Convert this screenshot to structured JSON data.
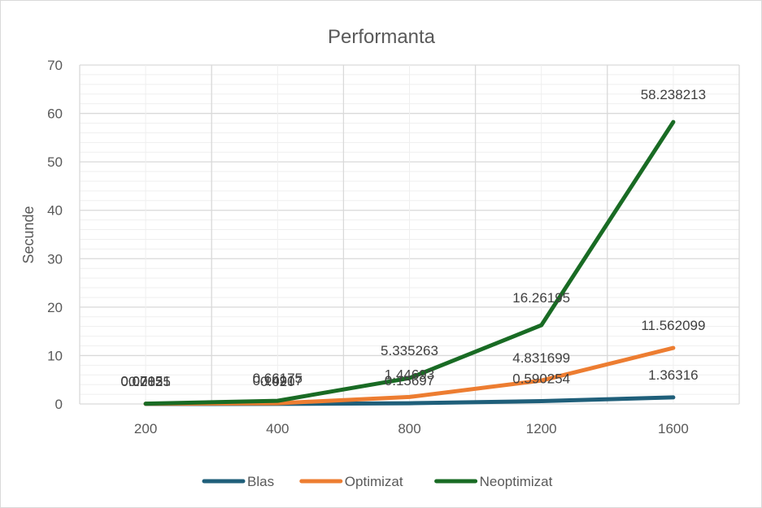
{
  "chart_data": {
    "type": "line",
    "title": "Performanta",
    "xlabel": "",
    "ylabel": "Secunde",
    "categories": [
      "200",
      "400",
      "800",
      "1200",
      "1600"
    ],
    "ylim": [
      0,
      70
    ],
    "yticks": [
      "0",
      "10",
      "20",
      "30",
      "40",
      "50",
      "60",
      "70"
    ],
    "grid": true,
    "legend_position": "bottom",
    "series": [
      {
        "name": "Blas",
        "color": "#1f5f7a",
        "values": [
          0.002,
          0.02,
          0.15697,
          0.590254,
          1.36316
        ],
        "labels": [
          "0.002",
          "0.020",
          "0.15697",
          "0.590254",
          "1.36316"
        ]
      },
      {
        "name": "Optimizat",
        "color": "#ed7d31",
        "values": [
          0.028,
          0.149,
          1.44693,
          4.831699,
          11.562099
        ],
        "labels": [
          "0.02835",
          "0.14917",
          "1.44693",
          "4.831699",
          "11.562099"
        ]
      },
      {
        "name": "Neoptimizat",
        "color": "#196b24",
        "values": [
          0.07,
          0.66,
          5.335263,
          16.26195,
          58.238213
        ],
        "labels": [
          "0.07151",
          "0.66175",
          "5.335263",
          "16.26195",
          "58.238213"
        ]
      }
    ]
  }
}
